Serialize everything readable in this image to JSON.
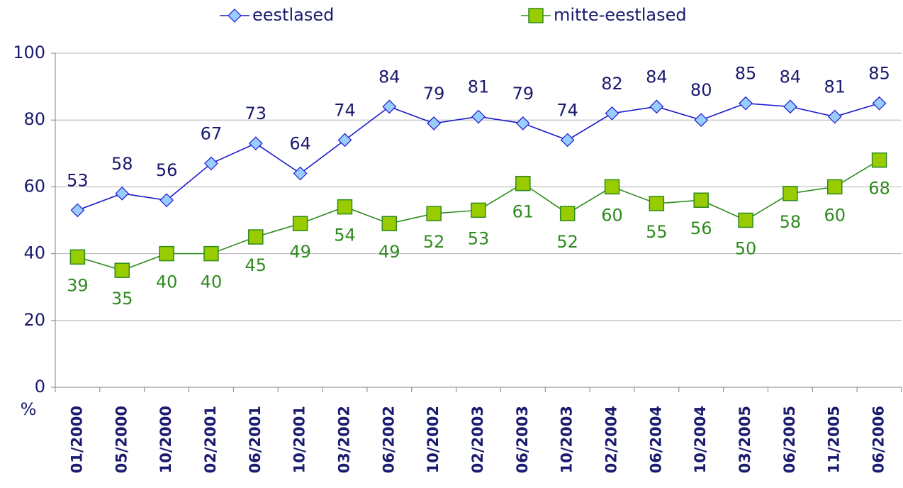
{
  "chart_data": {
    "type": "line",
    "categories": [
      "01/2000",
      "05/2000",
      "10/2000",
      "02/2001",
      "06/2001",
      "10/2001",
      "03/2002",
      "06/2002",
      "10/2002",
      "02/2003",
      "06/2003",
      "10/2003",
      "02/2004",
      "06/2004",
      "10/2004",
      "03/2005",
      "06/2005",
      "11/2005",
      "06/2006"
    ],
    "series": [
      {
        "name": "eestlased",
        "color": "#1a1acc",
        "marker": "diamond",
        "marker_color": "#99ccff",
        "label_color": "#1a1a6e",
        "label_position": "above",
        "values": [
          53,
          58,
          56,
          67,
          73,
          64,
          74,
          84,
          79,
          81,
          79,
          74,
          82,
          84,
          80,
          85,
          84,
          81,
          85
        ]
      },
      {
        "name": "mitte-eestlased",
        "color": "#2e8b1e",
        "marker": "square",
        "marker_color": "#99cc00",
        "label_color": "#2e8b1e",
        "label_position": "below",
        "values": [
          39,
          35,
          40,
          40,
          45,
          49,
          54,
          49,
          52,
          53,
          61,
          52,
          60,
          55,
          56,
          50,
          58,
          60,
          68
        ]
      }
    ],
    "ylabel": "%",
    "ylim": [
      0,
      100
    ],
    "yticks": [
      0,
      20,
      40,
      60,
      80,
      100
    ],
    "grid": true,
    "legend": "top"
  }
}
